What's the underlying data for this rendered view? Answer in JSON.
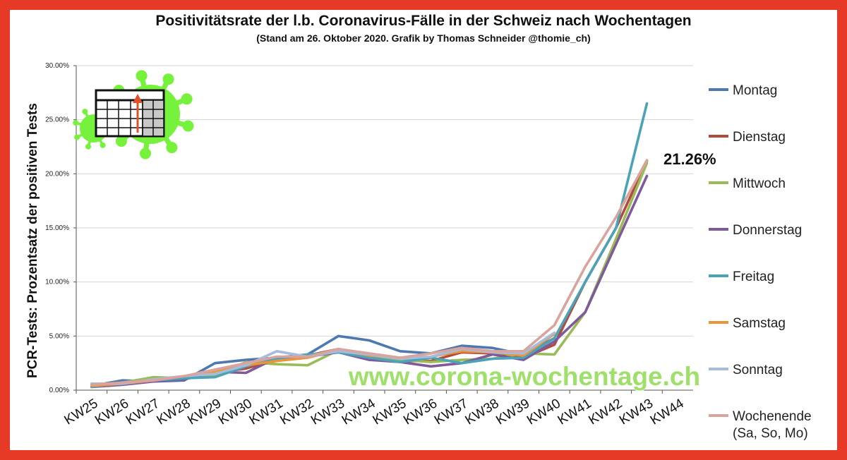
{
  "chart_data": {
    "type": "line",
    "title": "Positivitätsrate der l.b. Coronavirus-Fälle in der Schweiz nach Wochentagen",
    "subtitle": "(Stand am 26. Oktober 2020. Grafik by Thomas Schneider @thomie_ch)",
    "ylabel": "PCR-Tests: Prozentsatz der positiven Tests",
    "xlabel": "",
    "ylim": [
      0,
      30
    ],
    "yticks": [
      "0.00%",
      "5.00%",
      "10.00%",
      "15.00%",
      "20.00%",
      "25.00%",
      "30.00%"
    ],
    "categories": [
      "KW25",
      "KW26",
      "KW27",
      "KW28",
      "KW29",
      "KW30",
      "KW31",
      "KW32",
      "KW33",
      "KW34",
      "KW35",
      "KW36",
      "KW37",
      "KW38",
      "KW39",
      "KW40",
      "KW41",
      "KW42",
      "KW43",
      "KW44"
    ],
    "legend_position": "right",
    "grid": true,
    "series": [
      {
        "name": "Montag",
        "color": "#4e79b0",
        "values": [
          0.4,
          0.9,
          0.8,
          0.9,
          2.5,
          2.8,
          3.0,
          3.3,
          5.0,
          4.6,
          3.6,
          3.4,
          4.1,
          3.9,
          3.3,
          4.8,
          null,
          null,
          null,
          null
        ]
      },
      {
        "name": "Dienstag",
        "color": "#b14b3e",
        "values": [
          0.5,
          0.7,
          0.9,
          1.2,
          1.6,
          2.0,
          2.8,
          3.2,
          3.8,
          3.0,
          2.7,
          2.7,
          3.5,
          3.4,
          3.0,
          4.2,
          10.0,
          15.0,
          21.2,
          null
        ]
      },
      {
        "name": "Mittwoch",
        "color": "#9bbb59",
        "values": [
          0.4,
          0.7,
          1.2,
          1.1,
          1.3,
          2.6,
          2.4,
          2.3,
          3.7,
          3.0,
          2.8,
          2.6,
          2.8,
          2.9,
          3.4,
          3.3,
          7.2,
          14.0,
          21.0,
          null
        ]
      },
      {
        "name": "Donnerstag",
        "color": "#7e5a9b",
        "values": [
          0.3,
          0.5,
          0.8,
          1.0,
          1.7,
          1.6,
          3.0,
          3.1,
          3.5,
          2.8,
          2.6,
          2.2,
          2.5,
          3.3,
          2.8,
          4.5,
          7.2,
          13.5,
          19.8,
          null
        ]
      },
      {
        "name": "Freitag",
        "color": "#4ba3b8",
        "values": [
          0.3,
          0.7,
          0.9,
          1.1,
          1.2,
          2.2,
          2.9,
          3.3,
          3.5,
          3.0,
          2.6,
          3.0,
          2.5,
          2.9,
          3.0,
          4.8,
          10.0,
          15.0,
          26.5,
          null
        ]
      },
      {
        "name": "Samstag",
        "color": "#e9963a",
        "values": [
          0.4,
          0.6,
          0.9,
          1.3,
          1.7,
          2.3,
          2.7,
          3.0,
          3.7,
          3.2,
          3.0,
          3.1,
          3.6,
          3.5,
          3.2,
          5.2,
          null,
          null,
          null,
          null
        ]
      },
      {
        "name": "Sonntag",
        "color": "#a5bcdc",
        "values": [
          0.6,
          0.6,
          1.0,
          1.3,
          1.5,
          2.3,
          3.6,
          3.1,
          3.6,
          3.3,
          2.9,
          3.1,
          3.8,
          3.5,
          3.4,
          5.3,
          null,
          null,
          null,
          null
        ]
      },
      {
        "name": "Wochenende\n(Sa, So, Mo)",
        "color": "#d9a49e",
        "values": [
          0.5,
          0.7,
          0.9,
          1.3,
          1.9,
          2.5,
          3.1,
          3.1,
          3.8,
          3.4,
          3.0,
          3.4,
          3.9,
          3.6,
          3.6,
          6.0,
          11.4,
          16.0,
          21.26,
          null
        ]
      }
    ],
    "legend_labels": [
      {
        "line1": "Montag",
        "line2": ""
      },
      {
        "line1": "Dienstag",
        "line2": ""
      },
      {
        "line1": "Mittwoch",
        "line2": ""
      },
      {
        "line1": "Donnerstag",
        "line2": ""
      },
      {
        "line1": "Freitag",
        "line2": ""
      },
      {
        "line1": "Samstag",
        "line2": ""
      },
      {
        "line1": "Sonntag",
        "line2": ""
      },
      {
        "line1": "Wochenende",
        "line2": "(Sa, So, Mo)"
      }
    ],
    "annotation": "21.26%",
    "watermark": "www.corona-wochentage.ch"
  },
  "logo": {
    "icon": "virus-calendar-icon",
    "virus_color": "#77f23c",
    "arrow_color": "#e2502b"
  }
}
